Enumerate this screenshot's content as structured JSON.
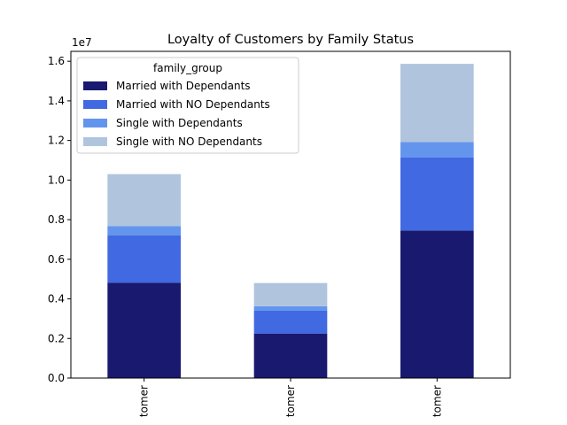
{
  "chart_data": {
    "type": "bar",
    "stacked": true,
    "title": "Loyalty of Customers by Family Status",
    "xlabel": "",
    "ylabel": "",
    "y_offset_text": "1e7",
    "ylim": [
      0,
      16500000
    ],
    "y_ticks": [
      0,
      2000000,
      4000000,
      6000000,
      8000000,
      10000000,
      12000000,
      14000000,
      16000000
    ],
    "y_tick_labels": [
      "0.0",
      "0.2",
      "0.4",
      "0.6",
      "0.8",
      "1.0",
      "1.2",
      "1.4",
      "1.6"
    ],
    "categories": [
      "tomer",
      "tomer",
      "tomer"
    ],
    "legend_title": "family_group",
    "legend_position": "top-left",
    "grid": false,
    "series": [
      {
        "name": "Married with Dependants",
        "color": "#191970",
        "values": [
          4820000,
          2250000,
          7450000
        ]
      },
      {
        "name": "Married with NO Dependants",
        "color": "#4169e1",
        "values": [
          2380000,
          1150000,
          3700000
        ]
      },
      {
        "name": "Single with Dependants",
        "color": "#6495ed",
        "values": [
          480000,
          230000,
          770000
        ]
      },
      {
        "name": "Single with NO Dependants",
        "color": "#b0c4de",
        "values": [
          2620000,
          1170000,
          3950000
        ]
      }
    ]
  }
}
